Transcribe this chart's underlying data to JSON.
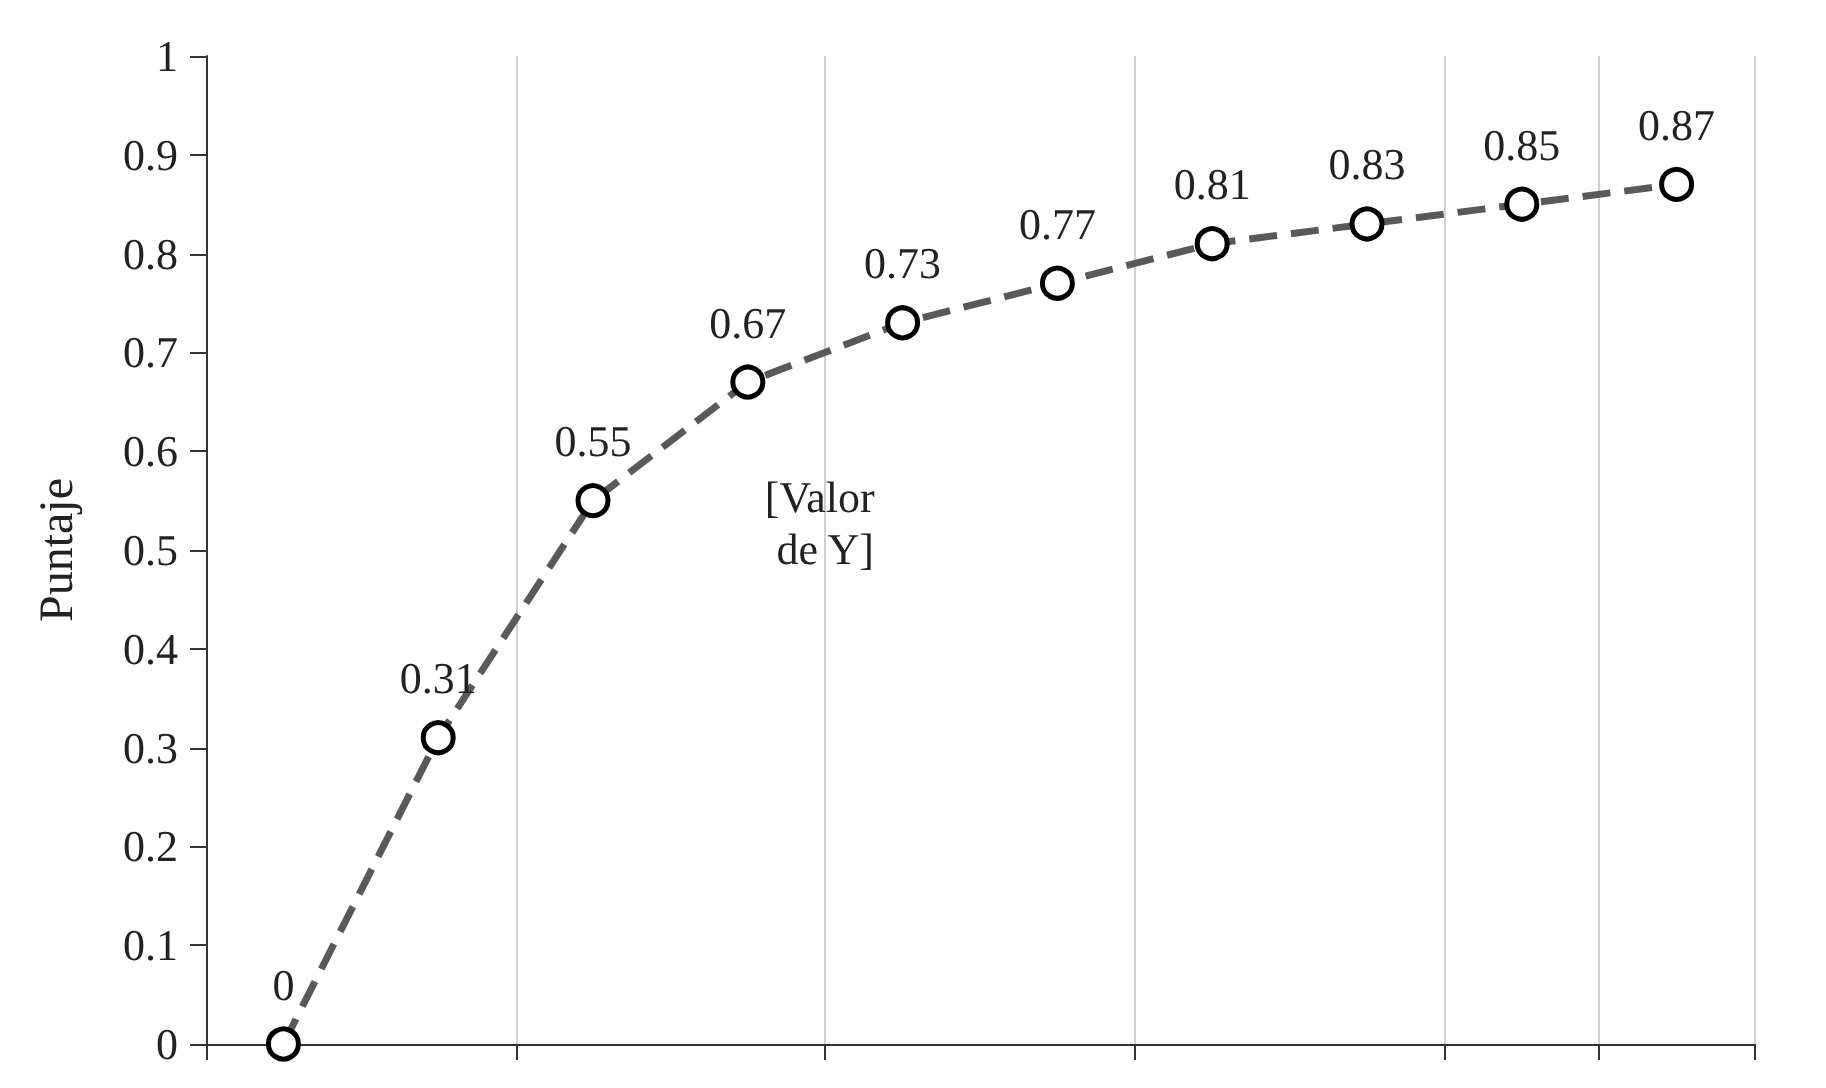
{
  "chart_data": {
    "type": "line",
    "ylabel": "Puntaje",
    "categories": [
      null,
      null,
      null,
      null,
      null,
      null,
      null,
      null,
      null,
      null
    ],
    "series": [
      {
        "color": "#595959",
        "values": [
          0,
          0.31,
          0.55,
          0.67,
          0.73,
          0.77,
          0.81,
          0.83,
          0.85,
          0.87
        ]
      }
    ],
    "ylim": [
      0,
      1
    ],
    "yticks": [
      0,
      0.1,
      0.2,
      0.3,
      0.4,
      0.5,
      0.6,
      0.7,
      0.8,
      0.9,
      1
    ],
    "grid": "x",
    "marker": "circle",
    "line_style": "dashed",
    "data_labels": true,
    "annotations": [
      "[Valor de Y]"
    ]
  }
}
